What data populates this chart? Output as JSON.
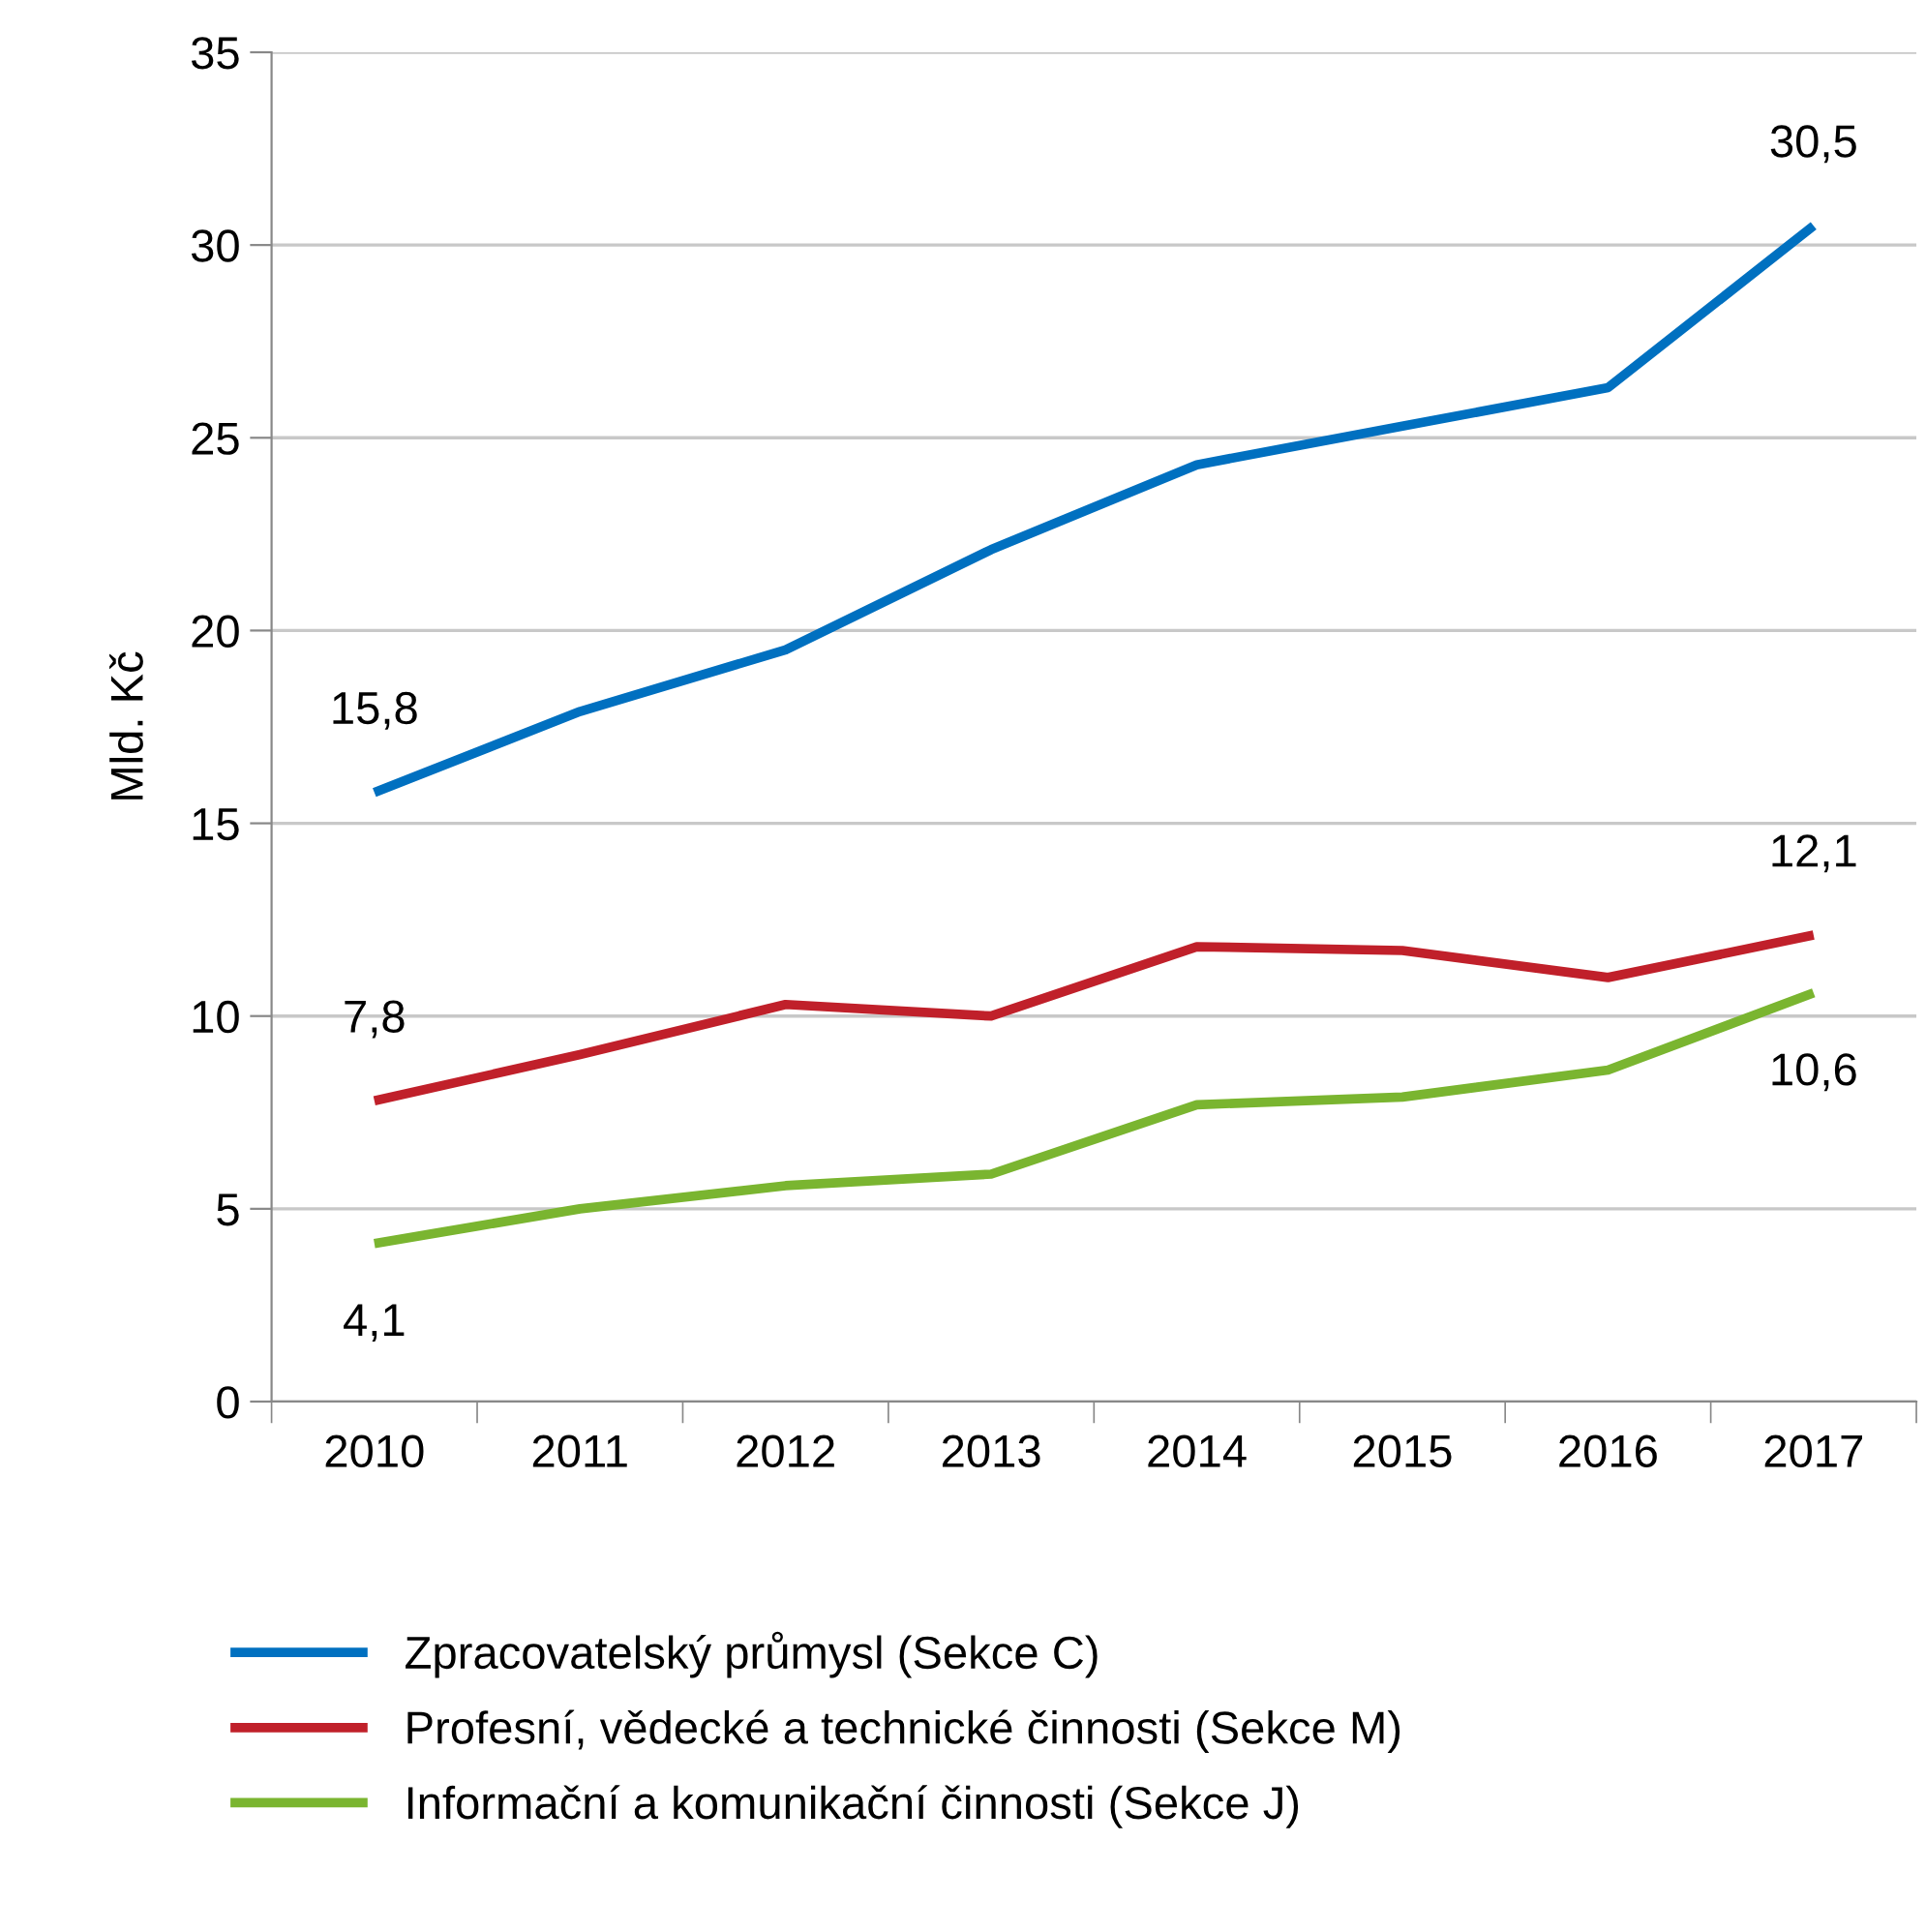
{
  "chart_data": {
    "type": "line",
    "ylabel": "Mld. Kč",
    "categories": [
      "2010",
      "2011",
      "2012",
      "2013",
      "2014",
      "2015",
      "2016",
      "2017"
    ],
    "series": [
      {
        "name": "Zpracovatelský průmysl (Sekce C)",
        "color": "#0070c0",
        "values": [
          15.8,
          17.9,
          19.5,
          22.1,
          24.3,
          25.3,
          26.3,
          30.5
        ],
        "value_labels": [
          "15,8",
          null,
          null,
          null,
          null,
          null,
          null,
          "30,5"
        ]
      },
      {
        "name": "Profesní, vědecké a technické činnosti (Sekce M)",
        "color": "#c0202a",
        "values": [
          7.8,
          9.0,
          10.3,
          10.0,
          11.8,
          11.7,
          11.0,
          12.1
        ],
        "value_labels": [
          "7,8",
          null,
          null,
          null,
          null,
          null,
          null,
          "12,1"
        ]
      },
      {
        "name": "Informační a komunikační činnosti (Sekce J)",
        "color": "#7ab530",
        "values": [
          4.1,
          5.0,
          5.6,
          5.9,
          7.7,
          7.9,
          8.6,
          10.6
        ],
        "value_labels": [
          "4,1",
          null,
          null,
          null,
          null,
          null,
          null,
          "10,6"
        ]
      }
    ],
    "ylim": [
      0,
      35
    ],
    "yticks": [
      0,
      5,
      10,
      15,
      20,
      25,
      30,
      35
    ],
    "grid": "y",
    "legend": "bottom",
    "marker": "none",
    "line_style": "solid"
  }
}
